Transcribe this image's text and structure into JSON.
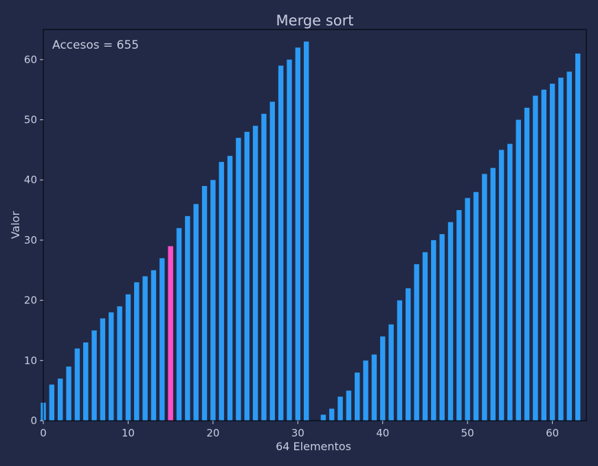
{
  "colors": {
    "background": "#212946",
    "bar": "#2c9bf5",
    "highlight": "#ff4fc8",
    "text": "#c8cde0",
    "axis": "#000000"
  },
  "chart_data": {
    "type": "bar",
    "title": "Merge sort",
    "annotation": "Accesos = 655",
    "xlabel": "64 Elementos",
    "ylabel": "Valor",
    "xlim": [
      0,
      64
    ],
    "ylim": [
      0,
      65
    ],
    "xticks": [
      0,
      10,
      20,
      30,
      40,
      50,
      60
    ],
    "yticks": [
      0,
      10,
      20,
      30,
      40,
      50,
      60
    ],
    "x": [
      0,
      1,
      2,
      3,
      4,
      5,
      6,
      7,
      8,
      9,
      10,
      11,
      12,
      13,
      14,
      15,
      16,
      17,
      18,
      19,
      20,
      21,
      22,
      23,
      24,
      25,
      26,
      27,
      28,
      29,
      30,
      31,
      32,
      33,
      34,
      35,
      36,
      37,
      38,
      39,
      40,
      41,
      42,
      43,
      44,
      45,
      46,
      47,
      48,
      49,
      50,
      51,
      52,
      53,
      54,
      55,
      56,
      57,
      58,
      59,
      60,
      61,
      62,
      63
    ],
    "values": [
      3,
      6,
      7,
      9,
      12,
      13,
      15,
      17,
      18,
      19,
      21,
      23,
      24,
      25,
      27,
      29,
      32,
      34,
      36,
      39,
      40,
      43,
      44,
      47,
      48,
      49,
      51,
      53,
      59,
      60,
      62,
      63,
      0,
      1,
      2,
      4,
      5,
      8,
      10,
      11,
      14,
      16,
      20,
      22,
      26,
      28,
      30,
      31,
      33,
      35,
      37,
      38,
      41,
      42,
      45,
      46,
      50,
      52,
      54,
      55,
      56,
      57,
      58,
      61
    ],
    "highlight_index": 15
  }
}
